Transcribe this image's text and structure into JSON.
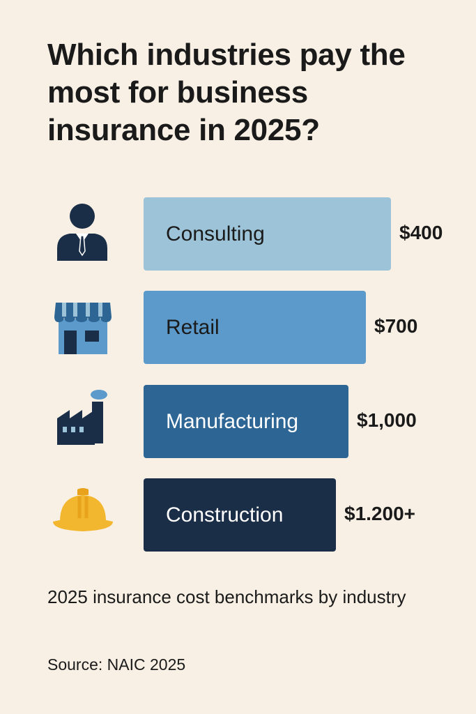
{
  "header": {
    "title": "Which industries pay the most for business insurance in 2025?"
  },
  "chart_data": {
    "type": "bar",
    "orientation": "horizontal",
    "categories": [
      "Consulting",
      "Retail",
      "Manufacturing",
      "Construction"
    ],
    "values": [
      400,
      700,
      1000,
      1200
    ],
    "value_labels": [
      "$400",
      "$700",
      "$1,000",
      "$1.200+"
    ],
    "icons": [
      "consultant-icon",
      "storefront-icon",
      "factory-icon",
      "hard-hat-icon"
    ],
    "colors": [
      "#9cc3d8",
      "#5b9aca",
      "#2d6695",
      "#1b2e47"
    ],
    "label_colors": [
      "#1a1a1a",
      "#1a1a1a",
      "#ffffff",
      "#ffffff"
    ],
    "title": "Which industries pay the most for business insurance in 2025?",
    "xlabel": "",
    "ylabel": "",
    "grid": false,
    "legend": "none"
  },
  "footer": {
    "subtitle": "2025 insurance cost benchmarks by industry",
    "source": "Source: NAIC 2025"
  }
}
